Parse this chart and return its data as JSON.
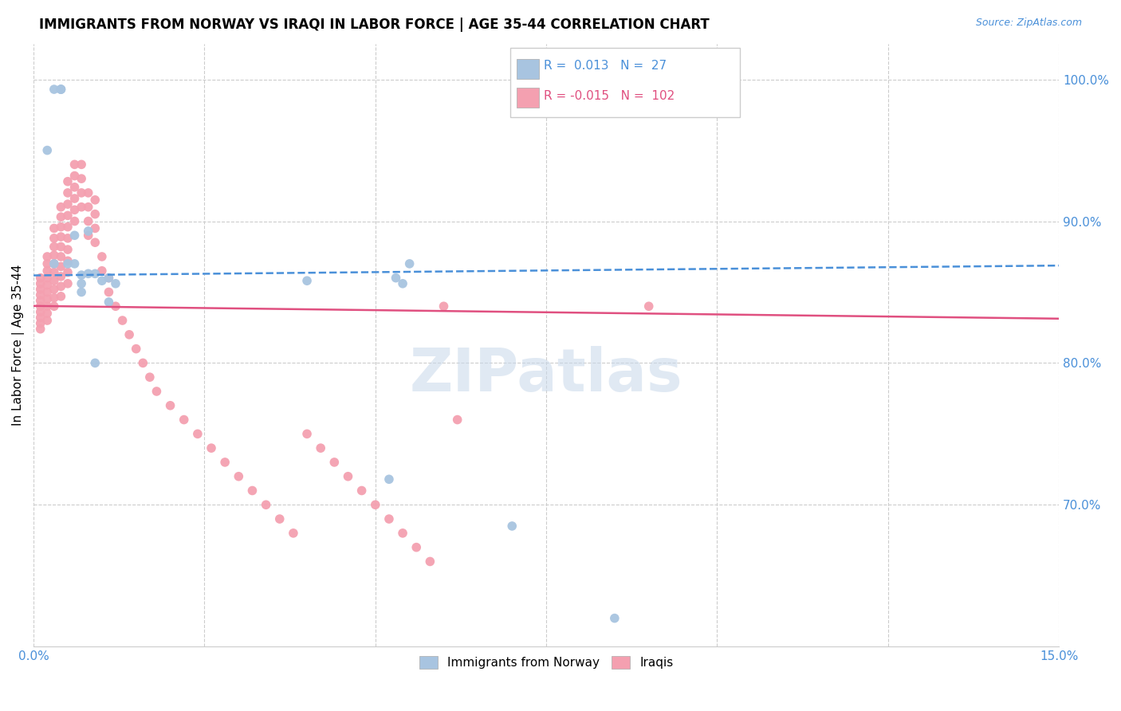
{
  "title": "IMMIGRANTS FROM NORWAY VS IRAQI IN LABOR FORCE | AGE 35-44 CORRELATION CHART",
  "source": "Source: ZipAtlas.com",
  "ylabel": "In Labor Force | Age 35-44",
  "xlim": [
    0.0,
    0.15
  ],
  "ylim": [
    0.6,
    1.025
  ],
  "watermark": "ZIPatlas",
  "norway_R": 0.013,
  "norway_N": 27,
  "iraqi_R": -0.015,
  "iraqi_N": 102,
  "norway_color": "#a8c4e0",
  "iraqi_color": "#f4a0b0",
  "norway_line_color": "#4a90d9",
  "iraqi_line_color": "#e05080",
  "norway_x": [
    0.002,
    0.003,
    0.003,
    0.004,
    0.004,
    0.004,
    0.005,
    0.006,
    0.006,
    0.007,
    0.007,
    0.007,
    0.008,
    0.008,
    0.009,
    0.009,
    0.01,
    0.011,
    0.011,
    0.012,
    0.04,
    0.053,
    0.054,
    0.055,
    0.07,
    0.085,
    0.052
  ],
  "norway_y": [
    0.95,
    0.87,
    0.993,
    0.993,
    0.993,
    0.993,
    0.87,
    0.89,
    0.87,
    0.862,
    0.85,
    0.856,
    0.893,
    0.863,
    0.863,
    0.8,
    0.858,
    0.843,
    0.86,
    0.856,
    0.858,
    0.86,
    0.856,
    0.87,
    0.685,
    0.62,
    0.718
  ],
  "iraqi_x": [
    0.001,
    0.001,
    0.001,
    0.001,
    0.001,
    0.001,
    0.001,
    0.001,
    0.001,
    0.001,
    0.002,
    0.002,
    0.002,
    0.002,
    0.002,
    0.002,
    0.002,
    0.002,
    0.002,
    0.002,
    0.003,
    0.003,
    0.003,
    0.003,
    0.003,
    0.003,
    0.003,
    0.003,
    0.003,
    0.003,
    0.004,
    0.004,
    0.004,
    0.004,
    0.004,
    0.004,
    0.004,
    0.004,
    0.004,
    0.004,
    0.005,
    0.005,
    0.005,
    0.005,
    0.005,
    0.005,
    0.005,
    0.005,
    0.005,
    0.005,
    0.006,
    0.006,
    0.006,
    0.006,
    0.006,
    0.006,
    0.007,
    0.007,
    0.007,
    0.007,
    0.008,
    0.008,
    0.008,
    0.008,
    0.009,
    0.009,
    0.009,
    0.009,
    0.01,
    0.01,
    0.011,
    0.011,
    0.012,
    0.013,
    0.014,
    0.015,
    0.016,
    0.017,
    0.018,
    0.02,
    0.022,
    0.024,
    0.026,
    0.028,
    0.03,
    0.032,
    0.034,
    0.036,
    0.038,
    0.04,
    0.042,
    0.044,
    0.046,
    0.048,
    0.05,
    0.052,
    0.054,
    0.056,
    0.058,
    0.06,
    0.062,
    0.09
  ],
  "iraqi_y": [
    0.86,
    0.856,
    0.852,
    0.848,
    0.844,
    0.84,
    0.836,
    0.832,
    0.828,
    0.824,
    0.875,
    0.87,
    0.865,
    0.86,
    0.855,
    0.85,
    0.845,
    0.84,
    0.835,
    0.83,
    0.895,
    0.888,
    0.882,
    0.876,
    0.87,
    0.864,
    0.858,
    0.852,
    0.846,
    0.84,
    0.91,
    0.903,
    0.896,
    0.889,
    0.882,
    0.875,
    0.868,
    0.861,
    0.854,
    0.847,
    0.928,
    0.92,
    0.912,
    0.904,
    0.896,
    0.888,
    0.88,
    0.872,
    0.864,
    0.856,
    0.94,
    0.932,
    0.924,
    0.916,
    0.908,
    0.9,
    0.94,
    0.93,
    0.92,
    0.91,
    0.92,
    0.91,
    0.9,
    0.89,
    0.915,
    0.905,
    0.895,
    0.885,
    0.875,
    0.865,
    0.86,
    0.85,
    0.84,
    0.83,
    0.82,
    0.81,
    0.8,
    0.79,
    0.78,
    0.77,
    0.76,
    0.75,
    0.74,
    0.73,
    0.72,
    0.71,
    0.7,
    0.69,
    0.68,
    0.75,
    0.74,
    0.73,
    0.72,
    0.71,
    0.7,
    0.69,
    0.68,
    0.67,
    0.66,
    0.84,
    0.76,
    0.84
  ]
}
